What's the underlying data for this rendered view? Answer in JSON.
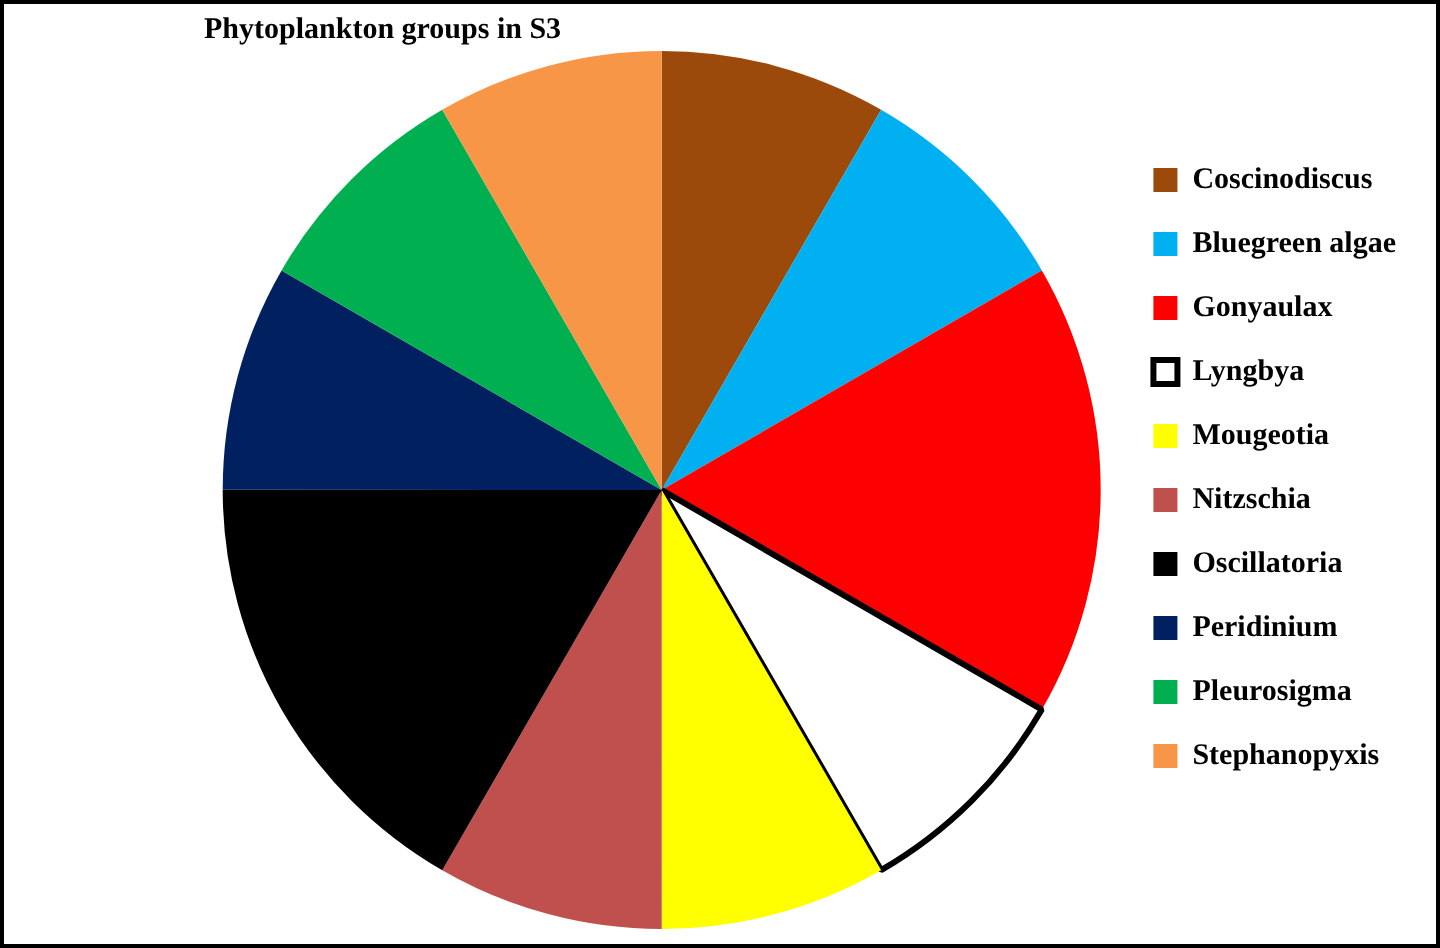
{
  "chart_data": {
    "type": "pie",
    "title": "Phytoplankton groups in S3",
    "categories": [
      "Coscinodiscus",
      "Bluegreen algae",
      "Gonyaulax",
      "Lyngbya",
      "Mougeotia",
      "Nitzschia",
      "Oscillatoria",
      "Peridinium",
      "Pleurosigma",
      "Stephanopyxis"
    ],
    "values": [
      8.33,
      8.33,
      16.67,
      8.33,
      8.33,
      8.33,
      16.67,
      8.33,
      8.33,
      8.33
    ],
    "colors": [
      "#9c4a0c",
      "#00b0f0",
      "#ff0000",
      "#ffffff",
      "#ffff00",
      "#c0504d",
      "#000000",
      "#002060",
      "#00b050",
      "#f79646"
    ],
    "legend": "right"
  }
}
